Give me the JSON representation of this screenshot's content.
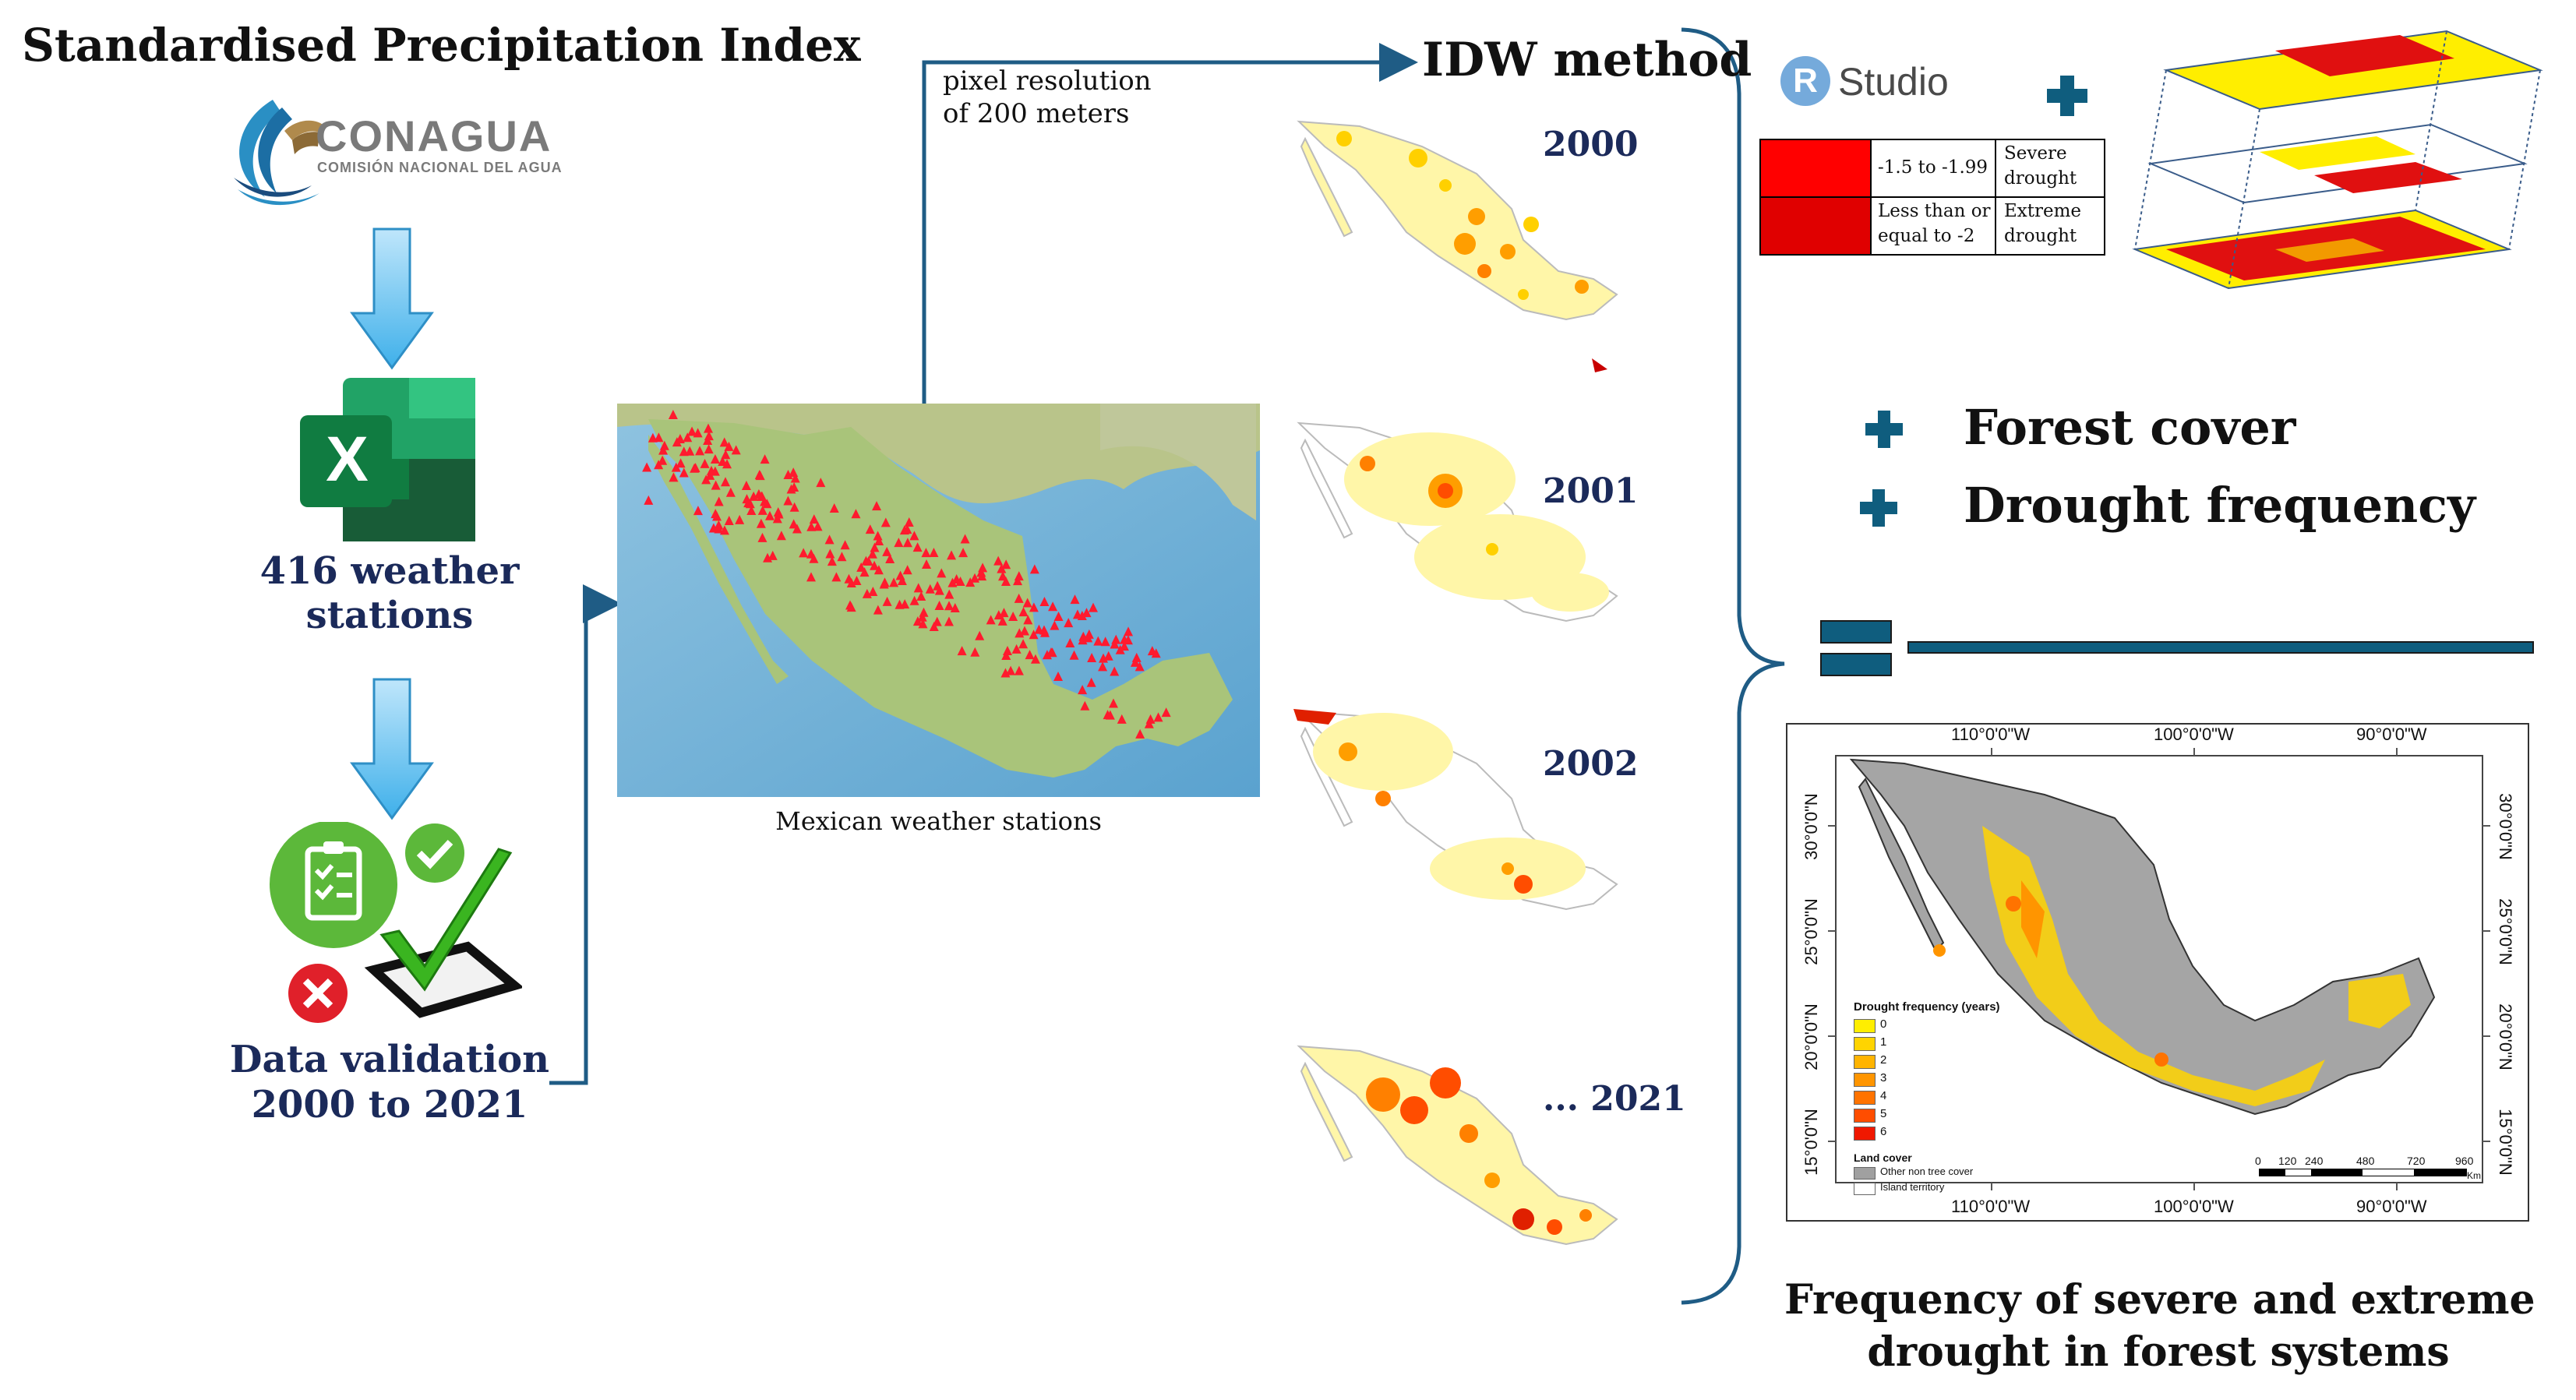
{
  "title": "Standardised Precipitation Index",
  "conagua": {
    "name": "CONAGUA",
    "subtitle": "COMISIÓN NACIONAL DEL AGUA"
  },
  "excel": {
    "letter": "X",
    "label_line1": "416 weather",
    "label_line2": "stations"
  },
  "validation": {
    "label_line1": "Data validation",
    "label_line2": "2000 to 2021"
  },
  "stations_map": {
    "caption": "Mexican weather stations"
  },
  "resolution_note": {
    "line1": "pixel resolution",
    "line2": "of 200 meters"
  },
  "idw": {
    "title": "IDW method",
    "years": [
      "2000",
      "2001",
      "2002",
      "... 2021"
    ]
  },
  "rstudio": {
    "r_letter": "R",
    "label": "Studio"
  },
  "spi_table": {
    "rows": [
      {
        "color": "#ff0000",
        "range": "-1.5 to -1.99",
        "cls_line1": "Severe",
        "cls_line2": "drought"
      },
      {
        "color": "#e00000",
        "range_line1": "Less than or",
        "range_line2": "equal to -2",
        "cls_line1": "Extreme",
        "cls_line2": "drought"
      }
    ]
  },
  "inputs": [
    "Forest cover",
    "Drought frequency"
  ],
  "result_map": {
    "top_ticks": [
      "110°0'0\"W",
      "100°0'0\"W",
      "90°0'0\"W"
    ],
    "bottom_ticks": [
      "110°0'0\"W",
      "100°0'0\"W",
      "90°0'0\"W"
    ],
    "lat_ticks": [
      "30°0'0\"N",
      "25°0'0\"N",
      "20°0'0\"N",
      "15°0'0\"N"
    ],
    "legend_title": "Drought frequency (years)",
    "legend_items": [
      {
        "label": "0",
        "color": "#ffee00"
      },
      {
        "label": "1",
        "color": "#ffd400"
      },
      {
        "label": "2",
        "color": "#ffb400"
      },
      {
        "label": "3",
        "color": "#ff9500"
      },
      {
        "label": "4",
        "color": "#ff7300"
      },
      {
        "label": "5",
        "color": "#ff4d00"
      },
      {
        "label": "6",
        "color": "#f01800"
      }
    ],
    "land_title": "Land cover",
    "land_items": [
      {
        "label": "Other non tree cover",
        "color": "#a0a0a0"
      },
      {
        "label": "Island territory",
        "color": "#ffffff"
      }
    ],
    "scale_labels": [
      "0",
      "120",
      "240",
      "480",
      "720",
      "960"
    ],
    "scale_unit": "Km"
  },
  "result_caption": {
    "line1": "Frequency of severe and extreme",
    "line2": "drought in forest systems"
  }
}
